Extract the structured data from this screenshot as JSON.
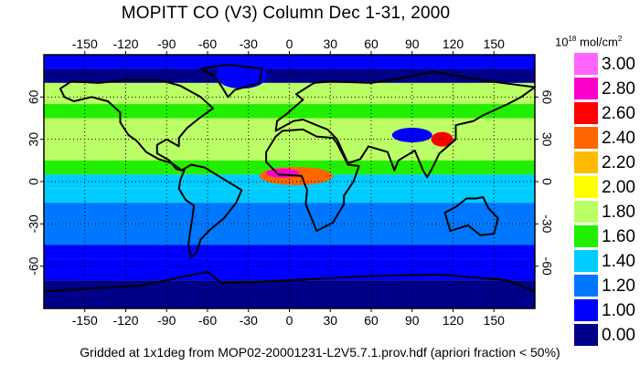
{
  "title": "MOPITT CO (V3) Column Dec 1-31, 2000",
  "units": {
    "prefix": "10",
    "exponent": "18",
    "suffix": " mol/cm",
    "suffix_exp": "2"
  },
  "footer": "Gridded at 1x1deg from MOP02-20001231-L2V5.7.1.prov.hdf (apriori fraction < 50%)",
  "map": {
    "lon_ticks": [
      "-150",
      "-120",
      "-90",
      "-60",
      "-30",
      "0",
      "30",
      "60",
      "90",
      "120",
      "150"
    ],
    "lon_values": [
      -150,
      -120,
      -90,
      -60,
      -30,
      0,
      30,
      60,
      90,
      120,
      150
    ],
    "lat_ticks": [
      "60",
      "30",
      "0",
      "-30",
      "-60"
    ],
    "lat_values": [
      60,
      30,
      0,
      -30,
      -60
    ],
    "lon_range": [
      -180,
      180
    ],
    "lat_range": [
      -90,
      90
    ],
    "grid": "dotted"
  },
  "colorbar": {
    "levels": [
      {
        "label": "3.00",
        "color": "#ff66ff"
      },
      {
        "label": "2.80",
        "color": "#ff00cc"
      },
      {
        "label": "2.60",
        "color": "#ff0000"
      },
      {
        "label": "2.40",
        "color": "#ff6600"
      },
      {
        "label": "2.20",
        "color": "#ffbb00"
      },
      {
        "label": "2.00",
        "color": "#ffff00"
      },
      {
        "label": "1.80",
        "color": "#bbff66"
      },
      {
        "label": "1.60",
        "color": "#22ee00"
      },
      {
        "label": "1.40",
        "color": "#00ccff"
      },
      {
        "label": "1.20",
        "color": "#0077ff"
      },
      {
        "label": "1.00",
        "color": "#0000ff"
      },
      {
        "label": "0.00",
        "color": "#000088"
      }
    ]
  }
}
